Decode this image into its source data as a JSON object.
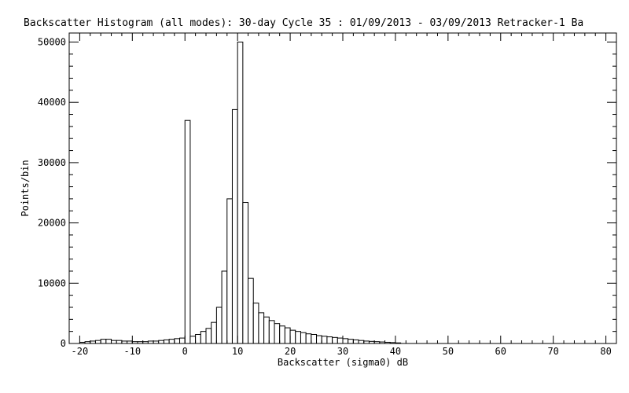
{
  "chart_data": {
    "type": "bar",
    "title": "Backscatter Histogram (all modes): 30-day Cycle 35 : 01/09/2013 - 03/09/2013 Retracker-1 Ba",
    "xlabel": "Backscatter (sigma0) dB",
    "ylabel": "Points/bin",
    "xlim": [
      -22,
      82
    ],
    "ylim": [
      0,
      51500
    ],
    "bin_width": 1,
    "grid": false,
    "xticks": [
      -20,
      -10,
      0,
      10,
      20,
      30,
      40,
      50,
      60,
      70,
      80
    ],
    "yticks": [
      0,
      10000,
      20000,
      30000,
      40000,
      50000
    ],
    "bin_starts": [
      -20,
      -19,
      -18,
      -17,
      -16,
      -15,
      -14,
      -13,
      -12,
      -11,
      -10,
      -9,
      -8,
      -7,
      -6,
      -5,
      -4,
      -3,
      -2,
      -1,
      0,
      1,
      2,
      3,
      4,
      5,
      6,
      7,
      8,
      9,
      10,
      11,
      12,
      13,
      14,
      15,
      16,
      17,
      18,
      19,
      20,
      21,
      22,
      23,
      24,
      25,
      26,
      27,
      28,
      29,
      30,
      31,
      32,
      33,
      34,
      35,
      36,
      37,
      38,
      39,
      40
    ],
    "values": [
      200,
      300,
      400,
      500,
      700,
      700,
      500,
      500,
      400,
      400,
      300,
      300,
      300,
      400,
      400,
      500,
      600,
      700,
      800,
      900,
      37000,
      1200,
      1500,
      2000,
      2500,
      3500,
      6000,
      12000,
      24000,
      38800,
      50000,
      23400,
      10800,
      6700,
      5100,
      4400,
      3800,
      3300,
      2900,
      2600,
      2200,
      2000,
      1800,
      1600,
      1500,
      1300,
      1200,
      1100,
      1000,
      900,
      800,
      700,
      600,
      500,
      400,
      350,
      300,
      250,
      200,
      150,
      100
    ]
  }
}
